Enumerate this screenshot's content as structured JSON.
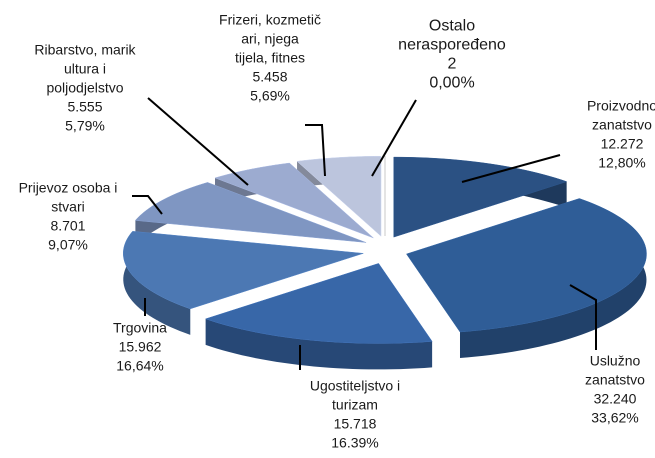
{
  "chart_data": {
    "type": "pie",
    "three_d": true,
    "categories": [
      [
        "Proizvodno",
        "zanatstvo"
      ],
      [
        "Uslužno",
        "zanatstvo"
      ],
      [
        "Ugostiteljstvo i",
        "turizam"
      ],
      [
        "Trgovina"
      ],
      [
        "Prijevoz osoba i",
        "stvari"
      ],
      [
        "Ribarstvo, marik",
        "ultura i",
        "poljodjelstvo"
      ],
      [
        "Frizeri, kozmetič",
        "ari, njega",
        "tijela, fitnes"
      ],
      [
        "Ostalo",
        "neraspoređeno"
      ]
    ],
    "values": [
      12.8,
      33.62,
      16.39,
      16.64,
      9.07,
      5.79,
      5.69,
      0.0
    ],
    "value_labels": [
      "12,80%",
      "33,62%",
      "16.39%",
      "16,64%",
      "9,07%",
      "5,79%",
      "5,69%",
      "0,00%"
    ],
    "counts": [
      12272,
      32240,
      15718,
      15962,
      8701,
      5555,
      5458,
      2
    ],
    "count_labels": [
      "12.272",
      "32.240",
      "15.718",
      "15.962",
      "8.701",
      "5.555",
      "5.458",
      "2"
    ],
    "colors": [
      "#2b5183",
      "#2f5d97",
      "#3867a8",
      "#4c78b3",
      "#7f96c2",
      "#9cabd0",
      "#bcc5dd",
      "#a6a6a6"
    ]
  }
}
